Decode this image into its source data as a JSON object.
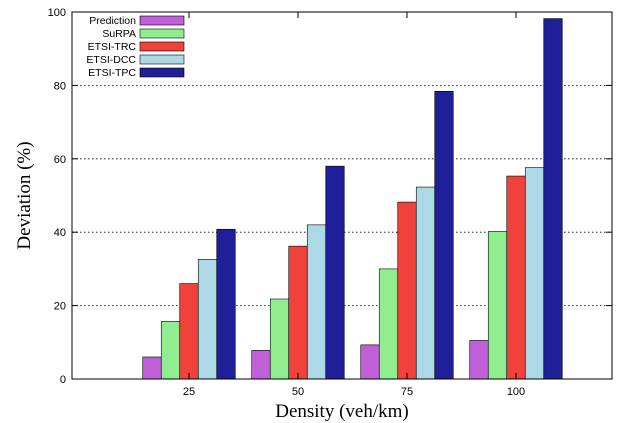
{
  "chart_data": {
    "type": "bar",
    "title": "",
    "xlabel": "Density (veh/km)",
    "ylabel": "Deviation (%)",
    "ylim": [
      0,
      100
    ],
    "yticks": [
      0,
      20,
      40,
      60,
      80,
      100
    ],
    "categories": [
      "25",
      "50",
      "75",
      "100"
    ],
    "grid": "horizontal dotted",
    "legend_position": "top-left",
    "series": [
      {
        "name": "Prediction",
        "color": "#bf5fd9",
        "values": [
          6.0,
          7.8,
          9.3,
          10.5
        ]
      },
      {
        "name": "SuRPA",
        "color": "#90ee90",
        "values": [
          15.7,
          21.8,
          30.0,
          40.2
        ]
      },
      {
        "name": "ETSI-TRC",
        "color": "#f0413b",
        "values": [
          26.0,
          36.2,
          48.2,
          55.3
        ]
      },
      {
        "name": "ETSI-DCC",
        "color": "#add8e6",
        "values": [
          32.6,
          42.0,
          52.3,
          57.6
        ]
      },
      {
        "name": "ETSI-TPC",
        "color": "#1f1f99",
        "values": [
          40.8,
          58.0,
          78.4,
          98.2
        ]
      }
    ]
  }
}
